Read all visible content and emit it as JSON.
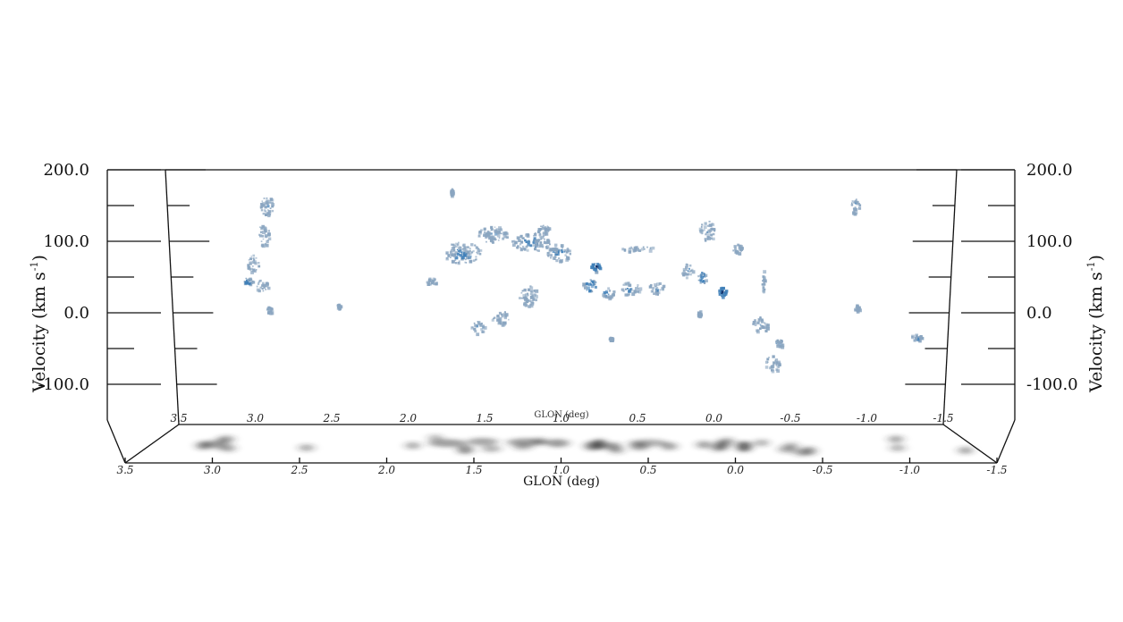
{
  "chart_data": {
    "type": "scatter",
    "title": "",
    "xlabel": "GLON (deg)",
    "ylabel": "Velocity (km s",
    "ylabel_exp": "-1",
    "ylabel_close": ")",
    "xlim": [
      3.5,
      -1.5
    ],
    "ylim": [
      -150,
      200
    ],
    "y_ticks": [
      200.0,
      100.0,
      0.0,
      -100.0
    ],
    "y_tick_labels": [
      "200.0",
      "100.0",
      "0.0",
      "-100.0"
    ],
    "x_ticks": [
      3.5,
      3.0,
      2.5,
      2.0,
      1.5,
      1.0,
      0.5,
      0.0,
      -0.5,
      -1.0,
      -1.5
    ],
    "x_tick_labels": [
      "3.5",
      "3.0",
      "2.5",
      "2.0",
      "1.5",
      "1.0",
      "0.5",
      "0.0",
      "-0.5",
      "-1.0",
      "-1.5"
    ],
    "grid": false,
    "colors": {
      "emission_light": "#8aa5c0",
      "emission_mid": "#3f7fb8",
      "emission_dark": "#0d2f6a",
      "projection": "#2a2a2a"
    },
    "clouds": [
      {
        "glon": 2.92,
        "vel": 150,
        "glon_width": 0.1,
        "vel_height": 28,
        "intensity": 0.45
      },
      {
        "glon": 2.95,
        "vel": 110,
        "glon_width": 0.07,
        "vel_height": 32,
        "intensity": 0.35
      },
      {
        "glon": 3.02,
        "vel": 70,
        "glon_width": 0.08,
        "vel_height": 25,
        "intensity": 0.4
      },
      {
        "glon": 3.05,
        "vel": 45,
        "glon_width": 0.06,
        "vel_height": 10,
        "intensity": 0.6
      },
      {
        "glon": 2.96,
        "vel": 38,
        "glon_width": 0.08,
        "vel_height": 18,
        "intensity": 0.35
      },
      {
        "glon": 2.91,
        "vel": 5,
        "glon_width": 0.04,
        "vel_height": 10,
        "intensity": 0.45
      },
      {
        "glon": 2.46,
        "vel": 10,
        "glon_width": 0.02,
        "vel_height": 7,
        "intensity": 0.4
      },
      {
        "glon": 1.72,
        "vel": 170,
        "glon_width": 0.015,
        "vel_height": 10,
        "intensity": 0.3
      },
      {
        "glon": 1.65,
        "vel": 85,
        "glon_width": 0.25,
        "vel_height": 30,
        "intensity": 0.5
      },
      {
        "glon": 1.45,
        "vel": 110,
        "glon_width": 0.2,
        "vel_height": 24,
        "intensity": 0.45
      },
      {
        "glon": 1.2,
        "vel": 100,
        "glon_width": 0.25,
        "vel_height": 26,
        "intensity": 0.5
      },
      {
        "glon": 1.02,
        "vel": 85,
        "glon_width": 0.15,
        "vel_height": 25,
        "intensity": 0.55
      },
      {
        "glon": 1.12,
        "vel": 118,
        "glon_width": 0.08,
        "vel_height": 12,
        "intensity": 0.35
      },
      {
        "glon": 1.85,
        "vel": 45,
        "glon_width": 0.07,
        "vel_height": 10,
        "intensity": 0.4
      },
      {
        "glon": 1.55,
        "vel": -20,
        "glon_width": 0.1,
        "vel_height": 18,
        "intensity": 0.65
      },
      {
        "glon": 1.4,
        "vel": -5,
        "glon_width": 0.12,
        "vel_height": 22,
        "intensity": 0.35
      },
      {
        "glon": 1.22,
        "vel": 25,
        "glon_width": 0.12,
        "vel_height": 30,
        "intensity": 0.3
      },
      {
        "glon": 0.78,
        "vel": 65,
        "glon_width": 0.06,
        "vel_height": 12,
        "intensity": 0.95
      },
      {
        "glon": 0.82,
        "vel": 40,
        "glon_width": 0.1,
        "vel_height": 20,
        "intensity": 0.7
      },
      {
        "glon": 0.7,
        "vel": 30,
        "glon_width": 0.08,
        "vel_height": 18,
        "intensity": 0.6
      },
      {
        "glon": 0.55,
        "vel": 35,
        "glon_width": 0.12,
        "vel_height": 20,
        "intensity": 0.55
      },
      {
        "glon": 0.38,
        "vel": 35,
        "glon_width": 0.1,
        "vel_height": 18,
        "intensity": 0.5
      },
      {
        "glon": 0.5,
        "vel": 90,
        "glon_width": 0.25,
        "vel_height": 8,
        "intensity": 0.35
      },
      {
        "glon": 0.18,
        "vel": 60,
        "glon_width": 0.08,
        "vel_height": 20,
        "intensity": 0.5
      },
      {
        "glon": 0.08,
        "vel": 50,
        "glon_width": 0.06,
        "vel_height": 16,
        "intensity": 0.75
      },
      {
        "glon": -0.05,
        "vel": 30,
        "glon_width": 0.05,
        "vel_height": 14,
        "intensity": 1.0
      },
      {
        "glon": 0.05,
        "vel": 115,
        "glon_width": 0.1,
        "vel_height": 30,
        "intensity": 0.4
      },
      {
        "glon": -0.15,
        "vel": 90,
        "glon_width": 0.06,
        "vel_height": 15,
        "intensity": 0.35
      },
      {
        "glon": -0.3,
        "vel": -15,
        "glon_width": 0.12,
        "vel_height": 22,
        "intensity": 0.4
      },
      {
        "glon": -0.42,
        "vel": -42,
        "glon_width": 0.05,
        "vel_height": 12,
        "intensity": 0.6
      },
      {
        "glon": -0.38,
        "vel": -70,
        "glon_width": 0.1,
        "vel_height": 22,
        "intensity": 0.35
      },
      {
        "glon": -0.32,
        "vel": 45,
        "glon_width": 0.02,
        "vel_height": 30,
        "intensity": 0.3
      },
      {
        "glon": 0.1,
        "vel": 0,
        "glon_width": 0.02,
        "vel_height": 8,
        "intensity": 0.3
      },
      {
        "glon": 0.68,
        "vel": -35,
        "glon_width": 0.02,
        "vel_height": 4,
        "intensity": 0.3
      },
      {
        "glon": -0.92,
        "vel": 150,
        "glon_width": 0.06,
        "vel_height": 20,
        "intensity": 0.45
      },
      {
        "glon": -0.93,
        "vel": 7,
        "glon_width": 0.03,
        "vel_height": 10,
        "intensity": 0.35
      },
      {
        "glon": -1.32,
        "vel": -33,
        "glon_width": 0.07,
        "vel_height": 10,
        "intensity": 0.45
      }
    ]
  }
}
